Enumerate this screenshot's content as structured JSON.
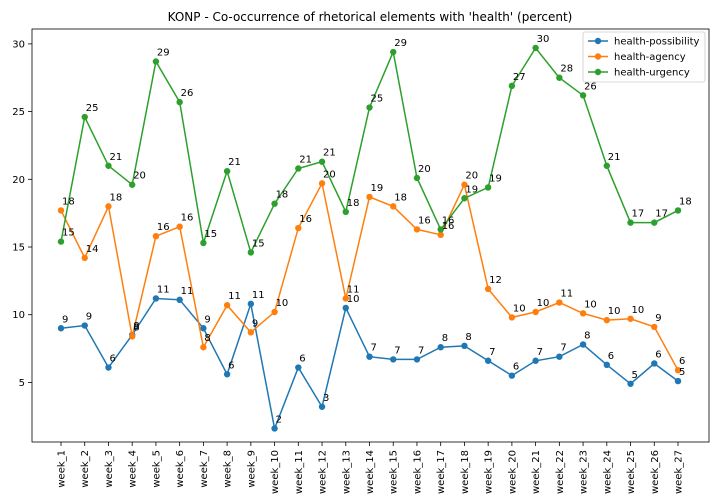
{
  "chart_data": {
    "type": "line",
    "title": "KONP - Co-occurrence of rhetorical elements with 'health' (percent)",
    "xlabel": "",
    "ylabel": "",
    "categories": [
      "week_1",
      "week_2",
      "week_3",
      "week_4",
      "week_5",
      "week_6",
      "week_7",
      "week_8",
      "week_9",
      "week_10",
      "week_11",
      "week_12",
      "week_13",
      "week_14",
      "week_15",
      "week_16",
      "week_17",
      "week_18",
      "week_19",
      "week_20",
      "week_21",
      "week_22",
      "week_23",
      "week_24",
      "week_25",
      "week_26",
      "week_27"
    ],
    "yticks": [
      5,
      10,
      15,
      20,
      25,
      30
    ],
    "ylim": [
      0.6,
      31.1
    ],
    "grid": false,
    "legend_position": "top-right",
    "series": [
      {
        "name": "health-possibility",
        "color": "#1f77b4",
        "values": [
          9.0,
          9.2,
          6.1,
          8.5,
          11.2,
          11.1,
          9.0,
          5.6,
          10.8,
          1.6,
          6.1,
          3.2,
          10.5,
          6.9,
          6.7,
          6.7,
          7.6,
          7.7,
          6.6,
          5.5,
          6.6,
          6.9,
          7.8,
          6.3,
          4.9,
          6.4,
          5.1
        ],
        "labels": [
          "9",
          "9",
          "6",
          "8",
          "11",
          "11",
          "9",
          "6",
          "11",
          "2",
          "6",
          "3",
          "10",
          "7",
          "7",
          "7",
          "8",
          "8",
          "7",
          "6",
          "7",
          "7",
          "8",
          "6",
          "5",
          "6",
          "5"
        ]
      },
      {
        "name": "health-agency",
        "color": "#ff7f0e",
        "values": [
          17.7,
          14.2,
          18.0,
          8.4,
          15.8,
          16.5,
          7.6,
          10.7,
          8.7,
          10.2,
          16.4,
          19.7,
          11.2,
          18.7,
          18.0,
          16.3,
          15.9,
          19.6,
          11.9,
          9.8,
          10.2,
          10.9,
          10.1,
          9.6,
          9.7,
          9.1,
          5.9
        ],
        "labels": [
          "18",
          "14",
          "18",
          "8",
          "16",
          "16",
          "8",
          "11",
          "9",
          "10",
          "16",
          "20",
          "11",
          "19",
          "18",
          "16",
          "16",
          "20",
          "12",
          "10",
          "10",
          "11",
          "10",
          "10",
          "10",
          "9",
          "6"
        ]
      },
      {
        "name": "health-urgency",
        "color": "#2ca02c",
        "values": [
          15.4,
          24.6,
          21.0,
          19.6,
          28.7,
          25.7,
          15.3,
          20.6,
          14.6,
          18.2,
          20.8,
          21.3,
          17.6,
          25.3,
          29.4,
          20.1,
          16.3,
          18.6,
          19.4,
          26.9,
          29.7,
          27.5,
          26.2,
          21.0,
          16.8,
          16.8,
          17.7
        ],
        "labels": [
          "15",
          "25",
          "21",
          "20",
          "29",
          "26",
          "15",
          "21",
          "15",
          "18",
          "21",
          "21",
          "18",
          "25",
          "29",
          "20",
          "16",
          "19",
          "19",
          "27",
          "30",
          "28",
          "26",
          "21",
          "17",
          "17",
          "18"
        ]
      }
    ]
  }
}
